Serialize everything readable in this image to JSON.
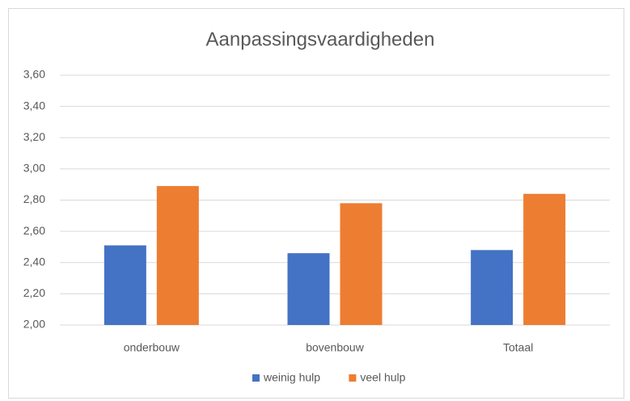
{
  "chart_data": {
    "type": "bar",
    "title": "Aanpassingsvaardigheden",
    "categories": [
      "onderbouw",
      "bovenbouw",
      "Totaal"
    ],
    "series": [
      {
        "name": "weinig hulp",
        "color": "#4472c4",
        "values": [
          2.51,
          2.46,
          2.48
        ]
      },
      {
        "name": "veel hulp",
        "color": "#ed7d31",
        "values": [
          2.89,
          2.78,
          2.84
        ]
      }
    ],
    "ylim": [
      2.0,
      3.6
    ],
    "yticks": [
      {
        "value": 2.0,
        "label": "2,00"
      },
      {
        "value": 2.2,
        "label": "2,20"
      },
      {
        "value": 2.4,
        "label": "2,40"
      },
      {
        "value": 2.6,
        "label": "2,60"
      },
      {
        "value": 2.8,
        "label": "2,80"
      },
      {
        "value": 3.0,
        "label": "3,00"
      },
      {
        "value": 3.2,
        "label": "3,20"
      },
      {
        "value": 3.4,
        "label": "3,40"
      },
      {
        "value": 3.6,
        "label": "3,60"
      }
    ],
    "grid": true,
    "legend": "bottom"
  }
}
